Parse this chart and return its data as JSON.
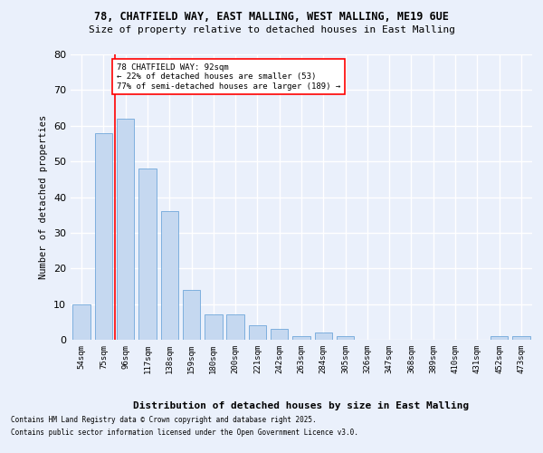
{
  "title1": "78, CHATFIELD WAY, EAST MALLING, WEST MALLING, ME19 6UE",
  "title2": "Size of property relative to detached houses in East Malling",
  "xlabel": "Distribution of detached houses by size in East Malling",
  "ylabel": "Number of detached properties",
  "categories": [
    "54sqm",
    "75sqm",
    "96sqm",
    "117sqm",
    "138sqm",
    "159sqm",
    "180sqm",
    "200sqm",
    "221sqm",
    "242sqm",
    "263sqm",
    "284sqm",
    "305sqm",
    "326sqm",
    "347sqm",
    "368sqm",
    "389sqm",
    "410sqm",
    "431sqm",
    "452sqm",
    "473sqm"
  ],
  "values": [
    10,
    58,
    62,
    48,
    36,
    14,
    7,
    7,
    4,
    3,
    1,
    2,
    1,
    0,
    0,
    0,
    0,
    0,
    0,
    1,
    1
  ],
  "bar_color": "#c5d8f0",
  "bar_edge_color": "#5b9bd5",
  "ylim": [
    0,
    80
  ],
  "yticks": [
    0,
    10,
    20,
    30,
    40,
    50,
    60,
    70,
    80
  ],
  "annotation_title": "78 CHATFIELD WAY: 92sqm",
  "annotation_line1": "← 22% of detached houses are smaller (53)",
  "annotation_line2": "77% of semi-detached houses are larger (189) →",
  "footer1": "Contains HM Land Registry data © Crown copyright and database right 2025.",
  "footer2": "Contains public sector information licensed under the Open Government Licence v3.0.",
  "background_color": "#eaf0fb",
  "grid_color": "#ffffff",
  "bar_width": 0.8
}
